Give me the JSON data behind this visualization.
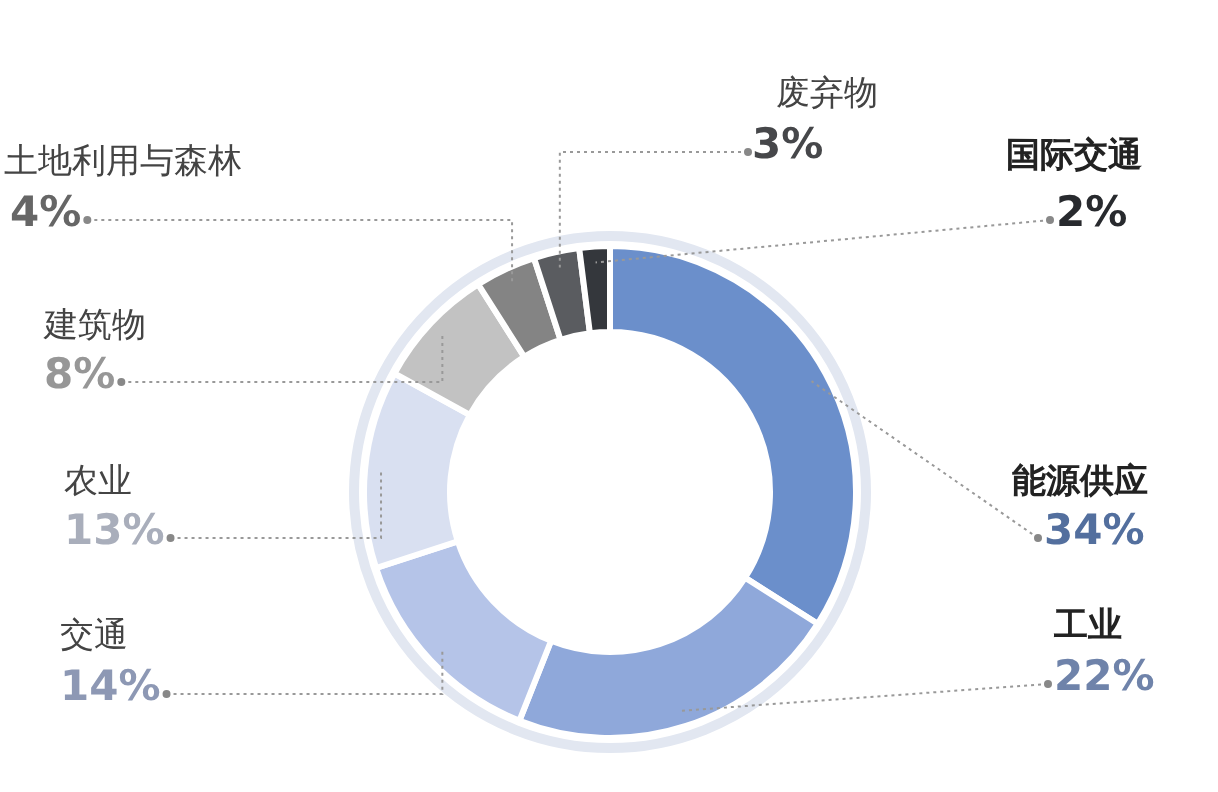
{
  "chart_data": {
    "type": "donut",
    "categories": [
      "能源供应",
      "工业",
      "交通",
      "农业",
      "建筑物",
      "土地利用与森林",
      "废弃物",
      "国际交通"
    ],
    "values": [
      34,
      22,
      14,
      13,
      8,
      4,
      3,
      2
    ],
    "value_labels": [
      "34%",
      "22%",
      "14%",
      "13%",
      "8%",
      "4%",
      "3%",
      "2%"
    ],
    "colors": [
      "#6b8fcb",
      "#8fa8da",
      "#b5c4e8",
      "#d9e0f1",
      "#c2c2c2",
      "#848484",
      "#5a5c60",
      "#34373c"
    ]
  }
}
